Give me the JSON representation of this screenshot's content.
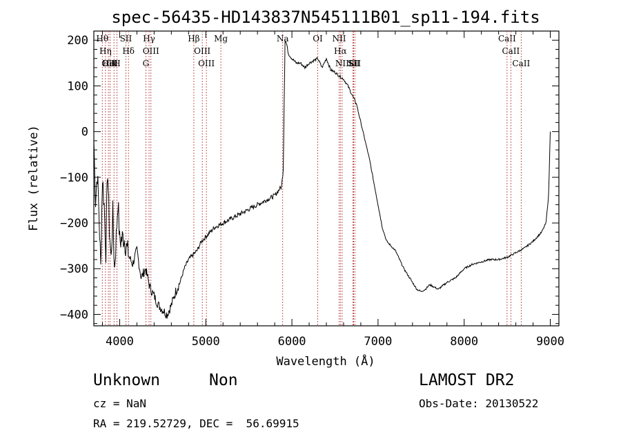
{
  "chart_data": {
    "type": "line",
    "title": "spec-56435-HD143837N545111B01_sp11-194.fits",
    "xlabel": "Wavelength (Å)",
    "ylabel": "Flux (relative)",
    "xlim": [
      3700,
      9100
    ],
    "ylim": [
      -425,
      220
    ],
    "x_ticks": [
      4000,
      5000,
      6000,
      7000,
      8000,
      9000
    ],
    "y_ticks": [
      -400,
      -300,
      -200,
      -100,
      0,
      100,
      200
    ],
    "series": [
      {
        "x": [
          3700,
          3720,
          3740,
          3760,
          3780,
          3800,
          3820,
          3840,
          3860,
          3880,
          3900,
          3920,
          3940,
          3960,
          3980,
          4000,
          4050,
          4100,
          4150,
          4200,
          4250,
          4300,
          4350,
          4400,
          4450,
          4500,
          4550,
          4600,
          4650,
          4700,
          4750,
          4800,
          4850,
          4900,
          4950,
          5000,
          5100,
          5200,
          5300,
          5400,
          5500,
          5600,
          5700,
          5800,
          5880,
          5900,
          5910,
          5920,
          5940,
          5960,
          6000,
          6050,
          6100,
          6150,
          6200,
          6300,
          6350,
          6400,
          6450,
          6500,
          6560,
          6600,
          6650,
          6700,
          6750,
          6800,
          6850,
          6900,
          6950,
          7000,
          7050,
          7100,
          7150,
          7200,
          7300,
          7400,
          7450,
          7500,
          7550,
          7600,
          7650,
          7700,
          7800,
          7900,
          8000,
          8100,
          8200,
          8300,
          8400,
          8500,
          8600,
          8700,
          8800,
          8900,
          8950,
          8980,
          9000
        ],
        "y": [
          -20,
          -150,
          -90,
          -180,
          -300,
          -100,
          -160,
          -260,
          -80,
          -210,
          -280,
          -180,
          -300,
          -230,
          -150,
          -240,
          -230,
          -270,
          -290,
          -260,
          -320,
          -300,
          -340,
          -360,
          -380,
          -390,
          -400,
          -380,
          -350,
          -330,
          -300,
          -280,
          -270,
          -260,
          -240,
          -230,
          -210,
          -200,
          -190,
          -180,
          -170,
          -160,
          -150,
          -140,
          -120,
          -80,
          60,
          200,
          190,
          170,
          160,
          150,
          150,
          140,
          150,
          160,
          140,
          160,
          135,
          130,
          120,
          115,
          100,
          80,
          60,
          20,
          -20,
          -60,
          -110,
          -160,
          -210,
          -240,
          -250,
          -260,
          -300,
          -330,
          -345,
          -350,
          -345,
          -335,
          -340,
          -345,
          -330,
          -320,
          -300,
          -290,
          -285,
          -280,
          -280,
          -275,
          -265,
          -255,
          -240,
          -220,
          -200,
          -140,
          0
        ]
      }
    ],
    "lines": [
      {
        "wl": 3798,
        "label": "Hθ"
      },
      {
        "wl": 3835,
        "label": "Hη"
      },
      {
        "wl": 3869,
        "label": "OII"
      },
      {
        "wl": 3889,
        "label": "HeI"
      },
      {
        "wl": 3934,
        "label": "K"
      },
      {
        "wl": 3968,
        "label": "H"
      },
      {
        "wl": 4072,
        "label": "SII"
      },
      {
        "wl": 4102,
        "label": "Hδ"
      },
      {
        "wl": 4304,
        "label": "G"
      },
      {
        "wl": 4341,
        "label": "Hγ"
      },
      {
        "wl": 4363,
        "label": "OIII"
      },
      {
        "wl": 4861,
        "label": "Hβ"
      },
      {
        "wl": 4959,
        "label": "OIII"
      },
      {
        "wl": 5007,
        "label": "OIII"
      },
      {
        "wl": 5175,
        "label": "Mg"
      },
      {
        "wl": 5893,
        "label": "Na"
      },
      {
        "wl": 6300,
        "label": "OI"
      },
      {
        "wl": 6548,
        "label": "NII"
      },
      {
        "wl": 6563,
        "label": "Hα"
      },
      {
        "wl": 6583,
        "label": "NII"
      },
      {
        "wl": 6708,
        "label": "Li"
      },
      {
        "wl": 6717,
        "label": "SII"
      },
      {
        "wl": 6731,
        "label": "SII"
      },
      {
        "wl": 8498,
        "label": "CaII"
      },
      {
        "wl": 8542,
        "label": "CaII"
      },
      {
        "wl": 8662,
        "label": "CaII"
      }
    ]
  },
  "info": {
    "class": "Unknown",
    "subclass": "Non",
    "survey": "LAMOST DR2",
    "cz": "cz = NaN",
    "obs_date": "Obs-Date: 20130522",
    "radec": "RA = 219.52729, DEC =  56.69915"
  }
}
